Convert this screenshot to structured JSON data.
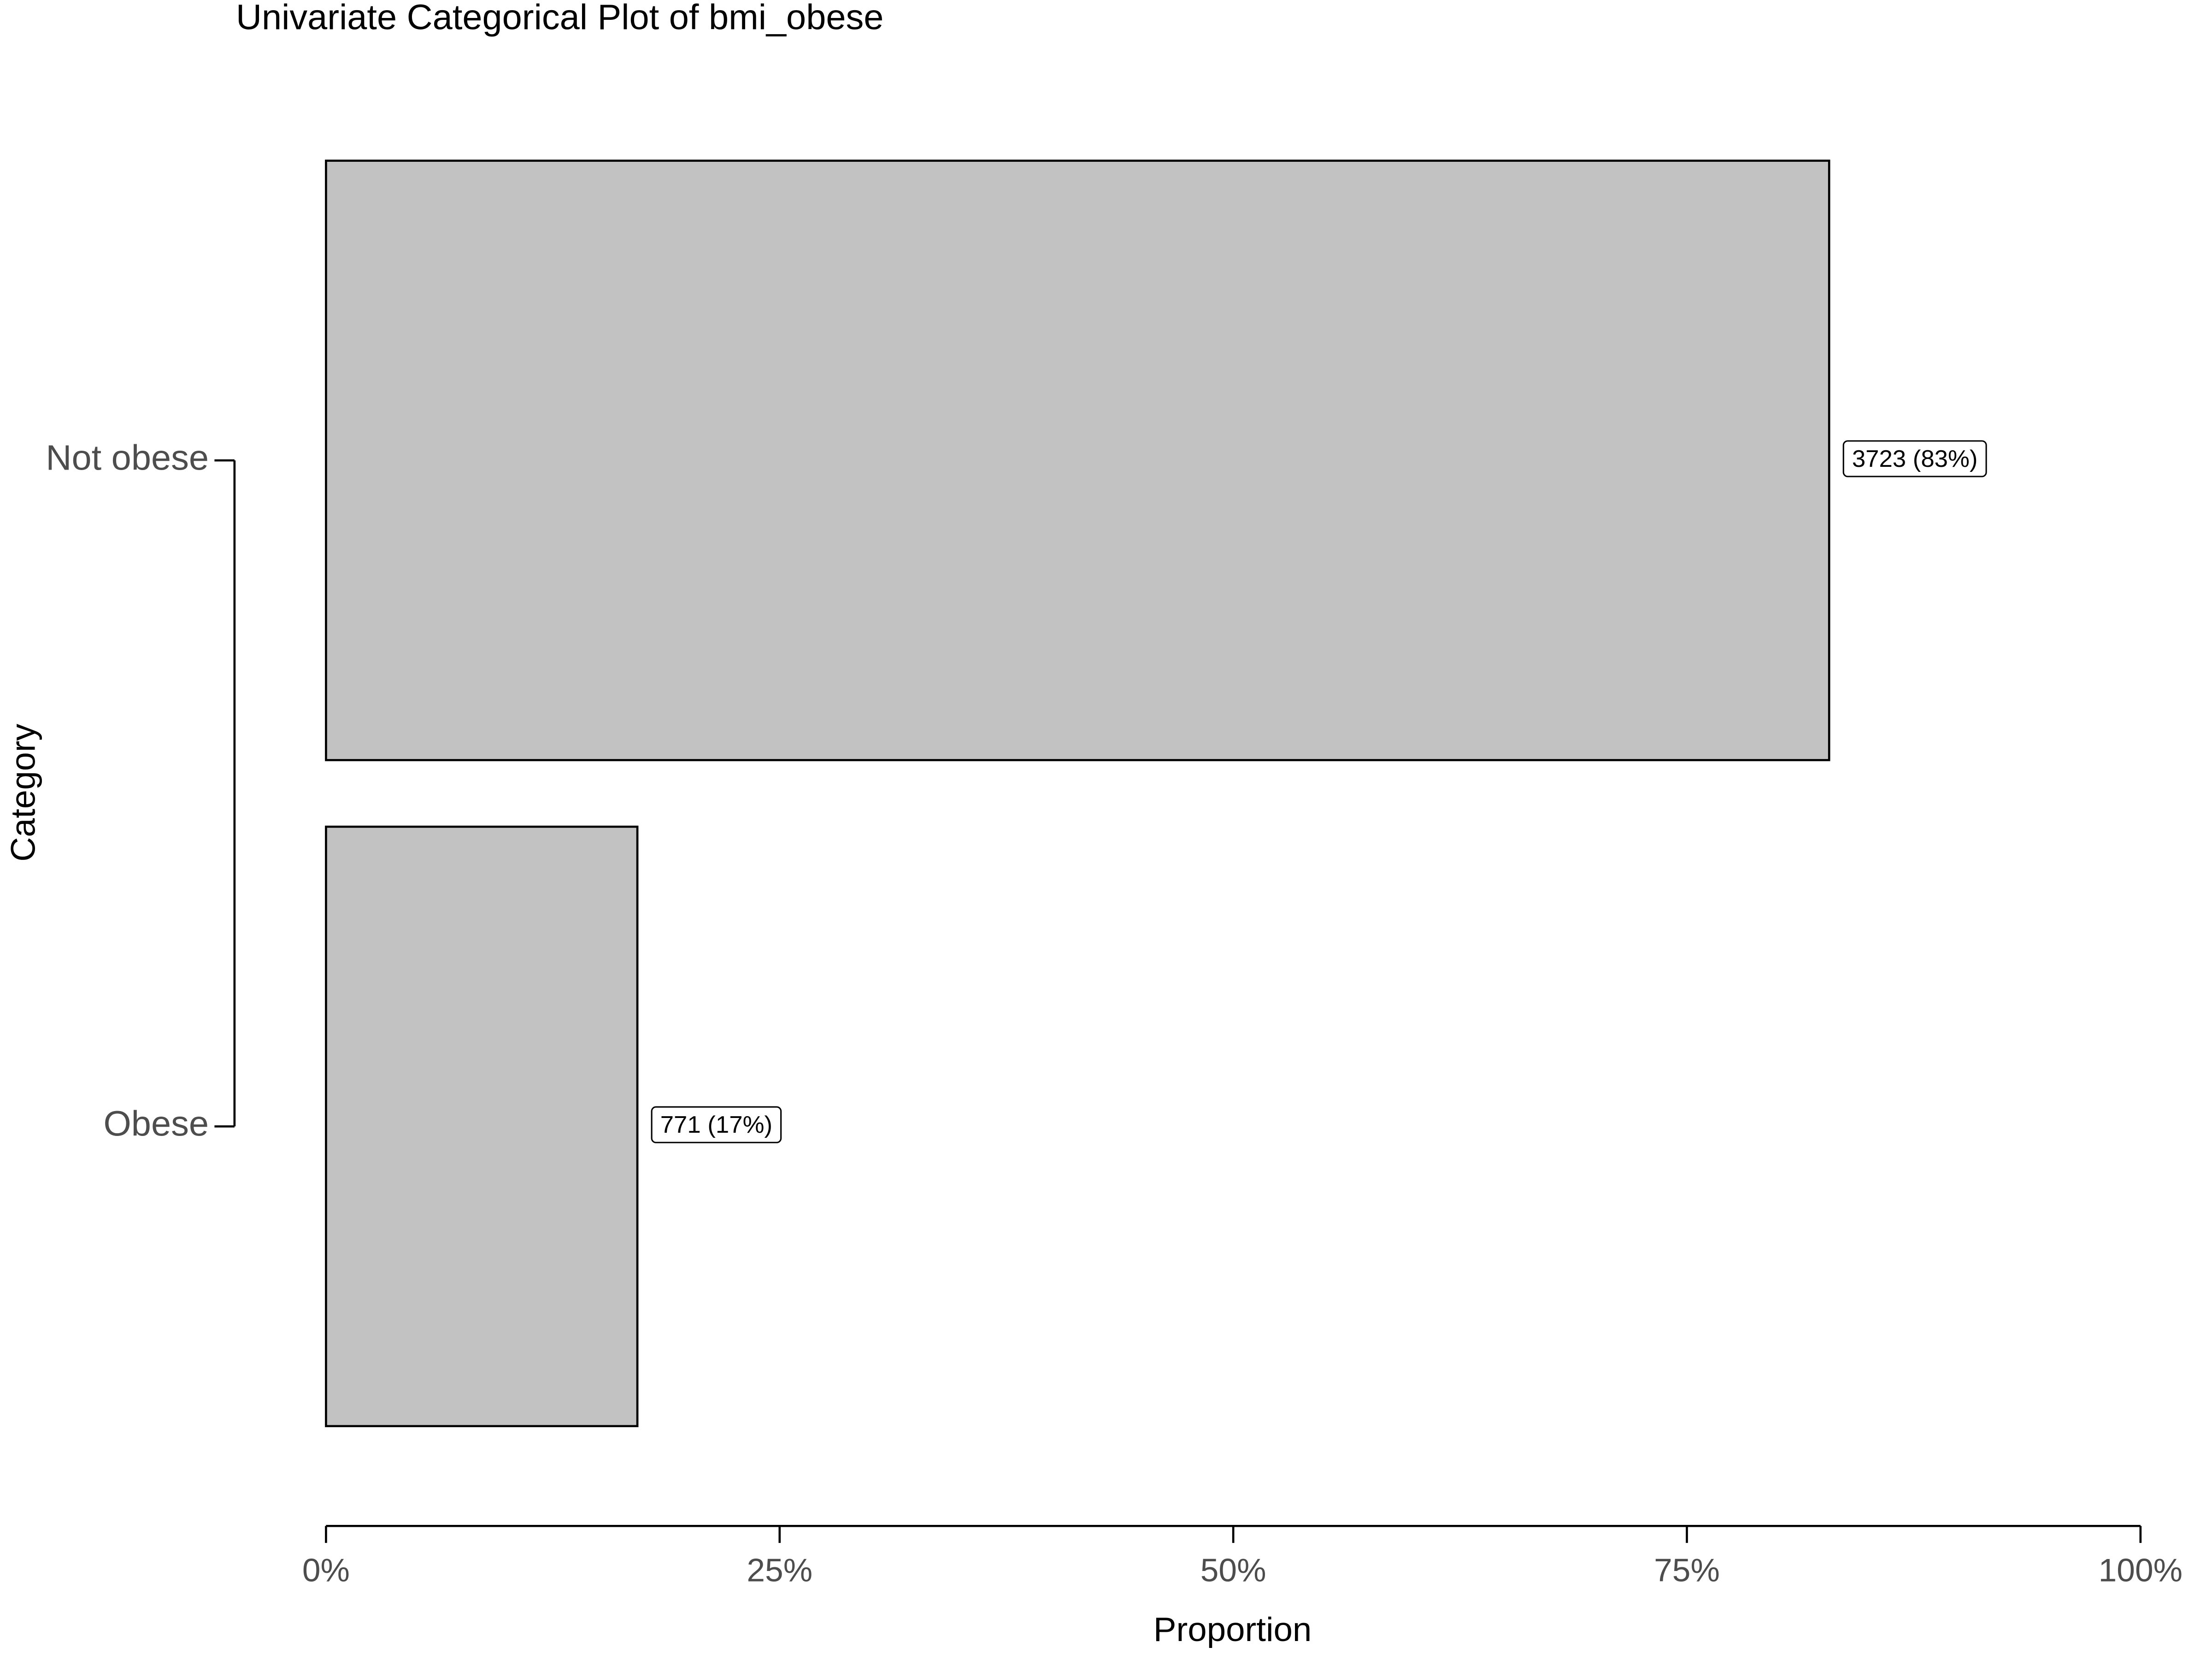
{
  "chart_data": {
    "type": "barh",
    "title": "Univariate Categorical Plot of bmi_obese",
    "categories": [
      "Not obese",
      "Obese"
    ],
    "values": [
      82.84,
      17.16
    ],
    "value_labels": [
      "3723 (83%)",
      "771 (17%)"
    ],
    "color": "#c2c2c2",
    "xlabel": "Proportion",
    "ylabel": "Category",
    "xlim": [
      0,
      100
    ],
    "xticks": [
      {
        "value": 0,
        "label": "0%"
      },
      {
        "value": 25,
        "label": "25%"
      },
      {
        "value": 50,
        "label": "50%"
      },
      {
        "value": 75,
        "label": "75%"
      },
      {
        "value": 100,
        "label": "100%"
      }
    ],
    "grid": false
  }
}
